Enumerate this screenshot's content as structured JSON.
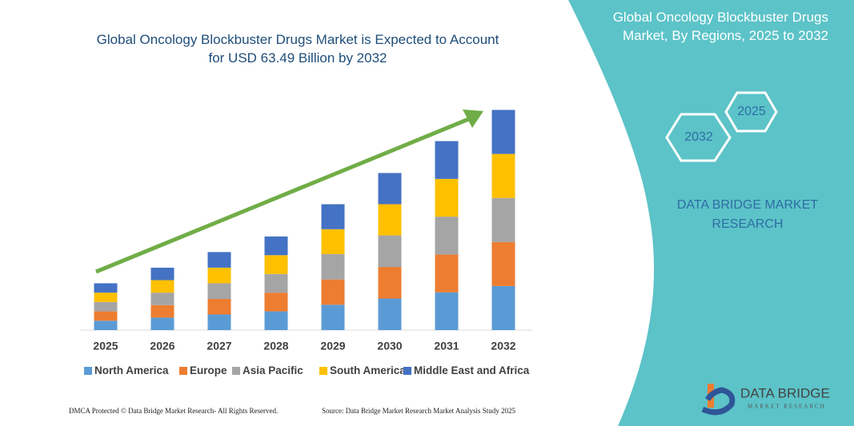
{
  "chart_data": {
    "type": "stacked-bar",
    "title": "Global Oncology Blockbuster Drugs Market is Expected to Account for USD 63.49 Billion by 2032",
    "categories": [
      "2025",
      "2026",
      "2027",
      "2028",
      "2029",
      "2030",
      "2031",
      "2032"
    ],
    "series": [
      {
        "name": "North America",
        "color": "#5b9bd5",
        "values": [
          2.7,
          3.6,
          4.5,
          5.4,
          7.3,
          9.1,
          10.9,
          12.7
        ]
      },
      {
        "name": "Europe",
        "color": "#ed7d31",
        "values": [
          2.7,
          3.6,
          4.5,
          5.4,
          7.3,
          9.1,
          10.9,
          12.7
        ]
      },
      {
        "name": "Asia Pacific",
        "color": "#a5a5a5",
        "values": [
          2.7,
          3.6,
          4.5,
          5.4,
          7.3,
          9.1,
          10.9,
          12.7
        ]
      },
      {
        "name": "South America",
        "color": "#ffc000",
        "values": [
          2.7,
          3.6,
          4.5,
          5.4,
          7.2,
          9.0,
          10.9,
          12.7
        ]
      },
      {
        "name": "Middle East and Africa",
        "color": "#4472c4",
        "values": [
          2.7,
          3.6,
          4.5,
          5.4,
          7.2,
          9.0,
          10.9,
          12.7
        ]
      }
    ],
    "ylim": [
      0,
      65
    ],
    "grid": false
  },
  "side_panel": {
    "title": "Global Oncology Blockbuster Drugs Market, By Regions, 2025 to 2032",
    "hexagons": [
      "2025",
      "2032"
    ],
    "brand": "DATA BRIDGE MARKET RESEARCH"
  },
  "footer": {
    "left": "DMCA Protected © Data Bridge Market Research- All Rights Reserved.",
    "right": "Source: Data Bridge Market Research Market Analysis Study 2025"
  },
  "logo": {
    "name": "DATA BRIDGE",
    "tagline": "MARKET RESEARCH"
  }
}
